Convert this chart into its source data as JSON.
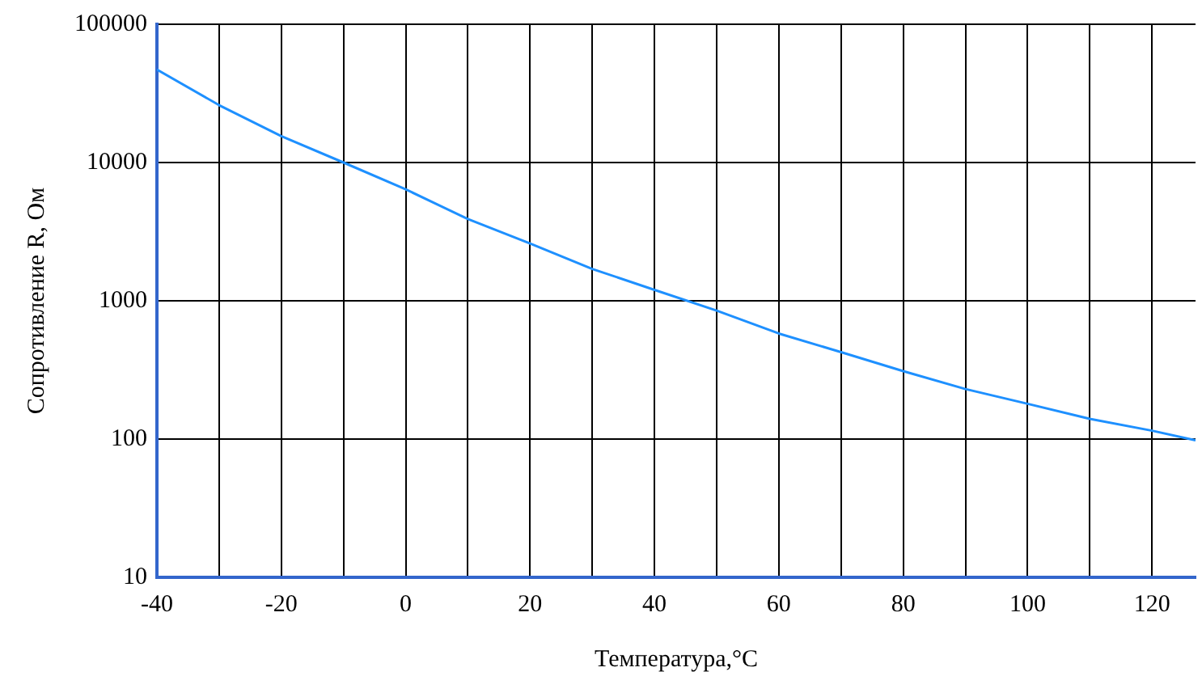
{
  "chart_data": {
    "type": "line",
    "xlabel": "Температура,°С",
    "ylabel": "Сопротивление R, Ом",
    "x": [
      -40,
      -30,
      -20,
      -10,
      0,
      10,
      20,
      30,
      40,
      50,
      60,
      70,
      80,
      90,
      100,
      110,
      120,
      127
    ],
    "series": [
      {
        "color": "#1e90ff",
        "values": [
          47000,
          26000,
          15500,
          10000,
          6400,
          3900,
          2600,
          1700,
          1200,
          850,
          580,
          425,
          310,
          230,
          180,
          140,
          115,
          98
        ]
      }
    ],
    "log": "y",
    "xlim": [
      -40,
      127
    ],
    "ylim": [
      10,
      100000
    ],
    "xticks": [
      -40,
      {
        "value": -30,
        "label": null
      },
      -20,
      {
        "value": -10,
        "label": null
      },
      0,
      {
        "value": 10,
        "label": null
      },
      20,
      {
        "value": 30,
        "label": null
      },
      40,
      {
        "value": 50,
        "label": null
      },
      60,
      {
        "value": 70,
        "label": null
      },
      80,
      {
        "value": 90,
        "label": null
      },
      100,
      {
        "value": 110,
        "label": null
      },
      120
    ],
    "yticks": [
      10,
      100,
      {
        "value": 1000,
        "label": "1000"
      },
      10000,
      100000
    ],
    "grid": true,
    "legend": false,
    "marker": "none",
    "line_style": "solid"
  }
}
